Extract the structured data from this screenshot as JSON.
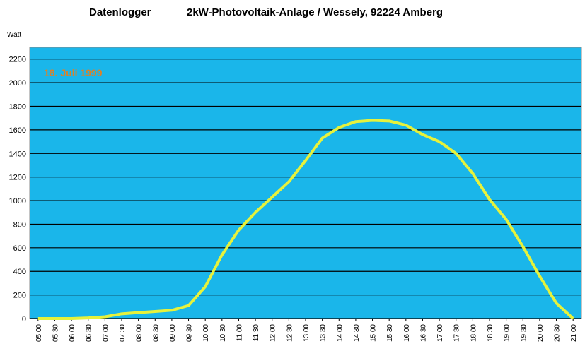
{
  "chart_data": {
    "type": "line",
    "title": "Datenlogger",
    "subtitle": "2kW-Photovoltaik-Anlage / Wessely, 92224 Amberg",
    "y_label": "Watt",
    "annotation": "18. Juli 1999",
    "categories": [
      "05:00",
      "05:30",
      "06:00",
      "06:30",
      "07:00",
      "07:30",
      "08:00",
      "08:30",
      "09:00",
      "09:30",
      "10:00",
      "10:30",
      "11:00",
      "11:30",
      "12:00",
      "12:30",
      "13:00",
      "13:30",
      "14:00",
      "14:30",
      "15:00",
      "15:30",
      "16:00",
      "16:30",
      "17:00",
      "17:30",
      "18:00",
      "18:30",
      "19:00",
      "19:30",
      "20:00",
      "20:30",
      "21:00"
    ],
    "series": [
      {
        "name": "Watt",
        "color": "#e6f23c",
        "values": [
          0,
          0,
          0,
          5,
          15,
          40,
          50,
          60,
          70,
          110,
          270,
          540,
          750,
          900,
          1030,
          1160,
          1340,
          1530,
          1620,
          1670,
          1680,
          1675,
          1640,
          1560,
          1500,
          1400,
          1230,
          1010,
          840,
          610,
          360,
          130,
          0
        ]
      }
    ],
    "ylim": [
      0,
      2300
    ],
    "yticks": [
      0,
      200,
      400,
      600,
      800,
      1000,
      1200,
      1400,
      1600,
      1800,
      2000,
      2200
    ],
    "grid": true,
    "background": "#1ab6ea"
  }
}
